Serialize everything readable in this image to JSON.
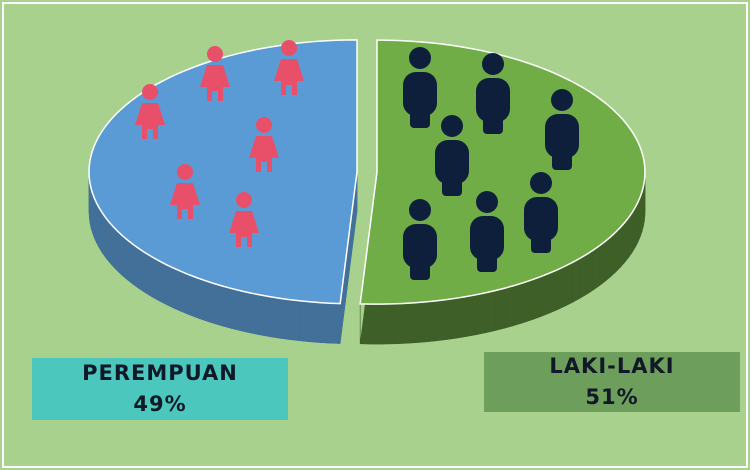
{
  "chart_data": {
    "type": "pie",
    "categories": [
      "PEREMPUAN",
      "LAKI-LAKI"
    ],
    "values": [
      49,
      51
    ],
    "value_labels": [
      "49%",
      "51%"
    ],
    "colors": [
      "#5b9bd5",
      "#70ad47"
    ]
  }
}
